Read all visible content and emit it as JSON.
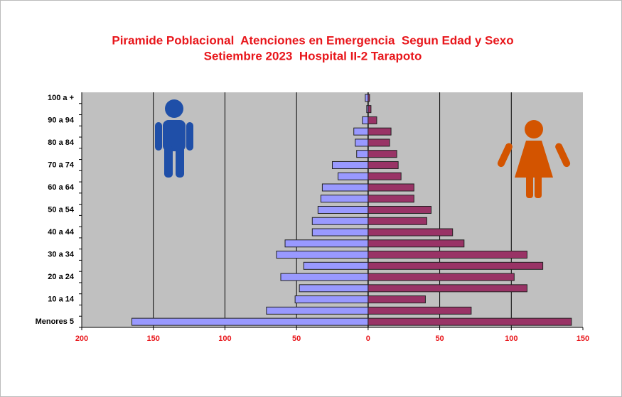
{
  "chart_data": {
    "type": "pyramid",
    "title": "Piramide Poblacional  Atenciones en Emergencia  Segun Edad y Sexo",
    "subtitle": "Setiembre 2023  Hospital II-2 Tarapoto",
    "categories": [
      "Menores 5",
      null,
      "10 a 14",
      null,
      "20 a 24",
      null,
      "30 a 34",
      null,
      "40 a 44",
      null,
      "50 a 54",
      null,
      "60 a 64",
      null,
      "70 a 74",
      null,
      "80 a 84",
      null,
      "90 a 94",
      null,
      "100 a +"
    ],
    "series": [
      {
        "color": "#9999ff",
        "values": [
          -165,
          -71,
          -51,
          -48,
          -61,
          -45,
          -64,
          -58,
          -39,
          -39,
          -35,
          -33,
          -32,
          -21,
          -25,
          -8,
          -9,
          -10,
          -4,
          -1,
          -2
        ]
      },
      {
        "color": "#993366",
        "values": [
          142,
          72,
          40,
          111,
          102,
          122,
          111,
          67,
          59,
          41,
          44,
          32,
          32,
          23,
          21,
          20,
          15,
          16,
          6,
          2,
          1
        ]
      }
    ],
    "xlim": [
      -200,
      150
    ],
    "xticks": [
      {
        "value": -200,
        "label": "200"
      },
      {
        "value": -150,
        "label": "150"
      },
      {
        "value": -100,
        "label": "100"
      },
      {
        "value": -50,
        "label": "50"
      },
      0,
      50,
      100,
      150
    ],
    "grid": true
  }
}
